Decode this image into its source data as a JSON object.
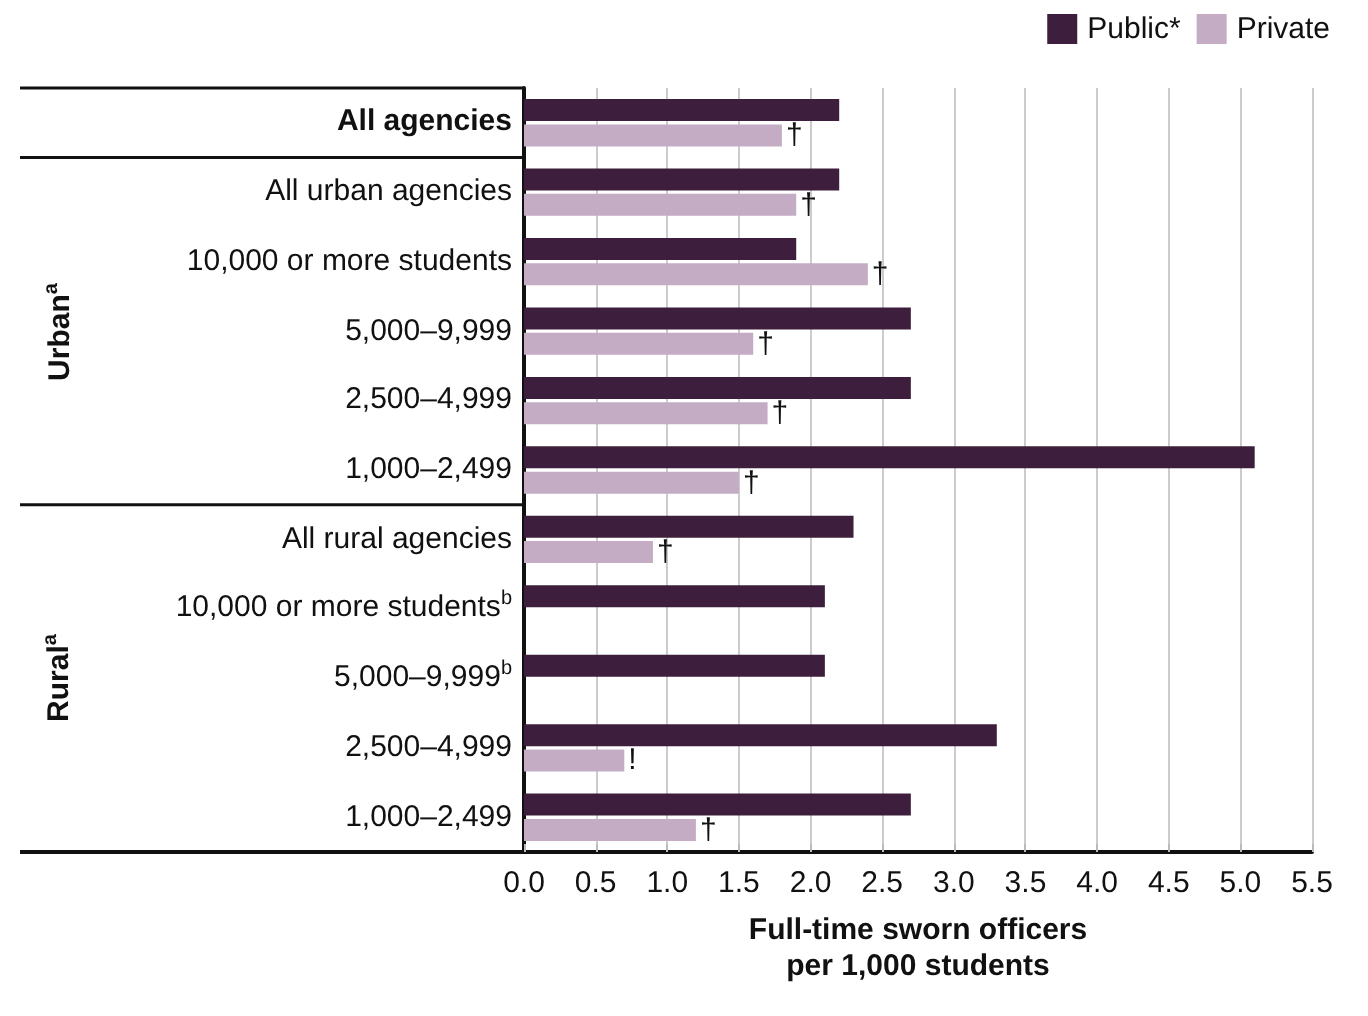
{
  "chart_data": {
    "type": "bar",
    "orientation": "horizontal",
    "categories": [
      "All agencies",
      "All urban agencies",
      "10,000 or more students",
      "5,000–9,999",
      "2,500–4,999",
      "1,000–2,499",
      "All rural agencies",
      "10,000 or more students$^{b}$",
      "5,000–9,999$^{b}$",
      "2,500–4,999",
      "1,000–2,499"
    ],
    "series": [
      {
        "name": "Public*",
        "color": "#3d1f3d",
        "values": [
          2.2,
          2.2,
          1.9,
          2.7,
          2.7,
          5.1,
          2.3,
          2.1,
          2.1,
          3.3,
          2.7
        ]
      },
      {
        "name": "Private",
        "color": "#c4adc4",
        "values": [
          1.8,
          1.9,
          2.4,
          1.6,
          1.7,
          1.5,
          0.9,
          null,
          null,
          0.7,
          1.2
        ],
        "value_labels": [
          "†",
          "†",
          "†",
          "†",
          "†",
          "†",
          "†",
          null,
          null,
          "!",
          "†"
        ]
      }
    ],
    "xlabel": "Full-time sworn officers\nper 1,000 students",
    "xlim": [
      0,
      5.5
    ],
    "xticks": [
      {
        "value": 0,
        "label": "0.0"
      },
      0.5,
      {
        "value": 1,
        "label": "1.0"
      },
      1.5,
      {
        "value": 2,
        "label": "2.0"
      },
      2.5,
      {
        "value": 3,
        "label": "3.0"
      },
      3.5,
      {
        "value": 4,
        "label": "4.0"
      },
      4.5,
      {
        "value": 5,
        "label": "5.0"
      },
      5.5
    ],
    "annotations": [
      "Urban$^{a}$",
      "Rural$^{a}$"
    ],
    "grid": "x",
    "legend": "top right"
  }
}
